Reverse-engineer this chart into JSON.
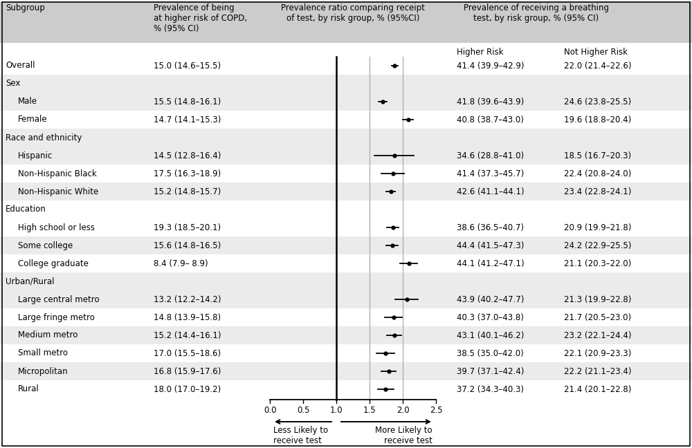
{
  "title_col1": "Subgroup",
  "title_col2": "Prevalence of being\nat higher risk of COPD,\n% (95% CI)",
  "title_col3": "Prevalence ratio comparing receipt\nof test, by risk group, % (95%CI)",
  "title_col4": "Prevalence of receiving a breathing\ntest, by risk group, % (95% CI)",
  "subheader_higher": "Higher Risk",
  "subheader_not_higher": "Not Higher Risk",
  "rows": [
    {
      "label": "Overall",
      "indent": 0,
      "prev": "15.0 (14.6–15.5)",
      "est": 1.88,
      "lo": 1.83,
      "hi": 1.93,
      "hr": "41.4 (39.9–42.9)",
      "nhr": "22.0 (21.4–22.6)",
      "header": false,
      "shade": false
    },
    {
      "label": "Sex",
      "indent": 0,
      "prev": "",
      "est": null,
      "lo": null,
      "hi": null,
      "hr": "",
      "nhr": "",
      "header": true,
      "shade": true
    },
    {
      "label": "Male",
      "indent": 1,
      "prev": "15.5 (14.8–16.1)",
      "est": 1.7,
      "lo": 1.64,
      "hi": 1.76,
      "hr": "41.8 (39.6–43.9)",
      "nhr": "24.6 (23.8–25.5)",
      "header": false,
      "shade": true
    },
    {
      "label": "Female",
      "indent": 1,
      "prev": "14.7 (14.1–15.3)",
      "est": 2.08,
      "lo": 2.0,
      "hi": 2.16,
      "hr": "40.8 (38.7–43.0)",
      "nhr": "19.6 (18.8–20.4)",
      "header": false,
      "shade": false
    },
    {
      "label": "Race and ethnicity",
      "indent": 0,
      "prev": "",
      "est": null,
      "lo": null,
      "hi": null,
      "hr": "",
      "nhr": "",
      "header": true,
      "shade": true
    },
    {
      "label": "Hispanic",
      "indent": 1,
      "prev": "14.5 (12.8–16.4)",
      "est": 1.87,
      "lo": 1.57,
      "hi": 2.17,
      "hr": "34.6 (28.8–41.0)",
      "nhr": "18.5 (16.7–20.3)",
      "header": false,
      "shade": true
    },
    {
      "label": "Non-Hispanic Black",
      "indent": 1,
      "prev": "17.5 (16.3–18.9)",
      "est": 1.85,
      "lo": 1.68,
      "hi": 2.02,
      "hr": "41.4 (37.3–45.7)",
      "nhr": "22.4 (20.8–24.0)",
      "header": false,
      "shade": false
    },
    {
      "label": "Non-Hispanic White",
      "indent": 1,
      "prev": "15.2 (14.8–15.7)",
      "est": 1.82,
      "lo": 1.75,
      "hi": 1.89,
      "hr": "42.6 (41.1–44.1)",
      "nhr": "23.4 (22.8–24.1)",
      "header": false,
      "shade": true
    },
    {
      "label": "Education",
      "indent": 0,
      "prev": "",
      "est": null,
      "lo": null,
      "hi": null,
      "hr": "",
      "nhr": "",
      "header": true,
      "shade": false
    },
    {
      "label": "High school or less",
      "indent": 1,
      "prev": "19.3 (18.5–20.1)",
      "est": 1.85,
      "lo": 1.76,
      "hi": 1.94,
      "hr": "38.6 (36.5–40.7)",
      "nhr": "20.9 (19.9–21.8)",
      "header": false,
      "shade": false
    },
    {
      "label": "Some college",
      "indent": 1,
      "prev": "15.6 (14.8–16.5)",
      "est": 1.84,
      "lo": 1.75,
      "hi": 1.93,
      "hr": "44.4 (41.5–47.3)",
      "nhr": "24.2 (22.9–25.5)",
      "header": false,
      "shade": true
    },
    {
      "label": "College graduate",
      "indent": 1,
      "prev": "8.4 (7.9– 8.9)",
      "est": 2.09,
      "lo": 1.96,
      "hi": 2.22,
      "hr": "44.1 (41.2–47.1)",
      "nhr": "21.1 (20.3–22.0)",
      "header": false,
      "shade": false
    },
    {
      "label": "Urban/Rural",
      "indent": 0,
      "prev": "",
      "est": null,
      "lo": null,
      "hi": null,
      "hr": "",
      "nhr": "",
      "header": true,
      "shade": true
    },
    {
      "label": "Large central metro",
      "indent": 1,
      "prev": "13.2 (12.2–14.2)",
      "est": 2.06,
      "lo": 1.89,
      "hi": 2.23,
      "hr": "43.9 (40.2–47.7)",
      "nhr": "21.3 (19.9–22.8)",
      "header": false,
      "shade": true
    },
    {
      "label": "Large fringe metro",
      "indent": 1,
      "prev": "14.8 (13.9–15.8)",
      "est": 1.86,
      "lo": 1.73,
      "hi": 1.99,
      "hr": "40.3 (37.0–43.8)",
      "nhr": "21.7 (20.5–23.0)",
      "header": false,
      "shade": false
    },
    {
      "label": "Medium metro",
      "indent": 1,
      "prev": "15.2 (14.4–16.1)",
      "est": 1.87,
      "lo": 1.76,
      "hi": 1.98,
      "hr": "43.1 (40.1–46.2)",
      "nhr": "23.2 (22.1–24.4)",
      "header": false,
      "shade": true
    },
    {
      "label": "Small metro",
      "indent": 1,
      "prev": "17.0 (15.5–18.6)",
      "est": 1.74,
      "lo": 1.6,
      "hi": 1.88,
      "hr": "38.5 (35.0–42.0)",
      "nhr": "22.1 (20.9–23.3)",
      "header": false,
      "shade": false
    },
    {
      "label": "Micropolitan",
      "indent": 1,
      "prev": "16.8 (15.9–17.6)",
      "est": 1.79,
      "lo": 1.68,
      "hi": 1.9,
      "hr": "39.7 (37.1–42.4)",
      "nhr": "22.2 (21.1–23.4)",
      "header": false,
      "shade": true
    },
    {
      "label": "Rural",
      "indent": 1,
      "prev": "18.0 (17.0–19.2)",
      "est": 1.74,
      "lo": 1.62,
      "hi": 1.86,
      "hr": "37.2 (34.3–40.3)",
      "nhr": "21.4 (20.1–22.8)",
      "header": false,
      "shade": false
    }
  ],
  "xmin": 0.0,
  "xmax": 2.5,
  "xticks": [
    0.0,
    0.5,
    1.0,
    1.5,
    2.0,
    2.5
  ],
  "vlines": [
    1.5,
    2.0
  ],
  "shade_color": "#ebebeb",
  "header_bg": "#cccccc",
  "text_color": "#000000"
}
